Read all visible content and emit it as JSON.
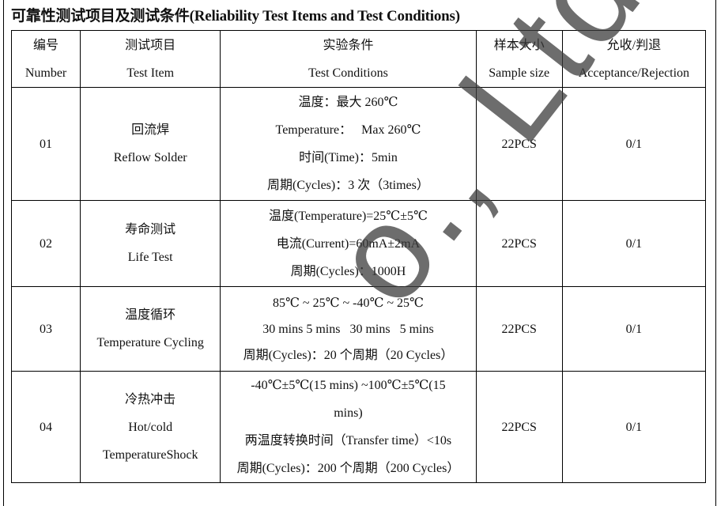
{
  "title": "可靠性测试项目及测试条件(Reliability Test Items and Test Conditions)",
  "table": {
    "headers": [
      {
        "cn": "编号",
        "en": "Number"
      },
      {
        "cn": "测试项目",
        "en": "Test Item"
      },
      {
        "cn": "实验条件",
        "en": "Test Conditions"
      },
      {
        "cn": "样本大小",
        "en": "Sample size"
      },
      {
        "cn": "允收/判退",
        "en": "Acceptance/Rejection"
      }
    ],
    "rows": [
      {
        "number": "01",
        "item_cn": "回流焊",
        "item_en": "Reflow Solder",
        "conditions": [
          "温度：最大 260℃",
          "Temperature：   Max 260℃",
          "时间(Time)：5min",
          "周期(Cycles)：3 次（3times）"
        ],
        "sample": "22PCS",
        "accept": "0/1"
      },
      {
        "number": "02",
        "item_cn": "寿命测试",
        "item_en": "Life Test",
        "conditions": [
          "温度(Temperature)=25℃±5℃",
          "电流(Current)=60mA±2mA",
          "周期(Cycles)：1000H"
        ],
        "sample": "22PCS",
        "accept": "0/1"
      },
      {
        "number": "03",
        "item_cn": "温度循环",
        "item_en": "Temperature Cycling",
        "conditions": [
          "85℃ ~ 25℃ ~ -40℃ ~ 25℃",
          "30 mins 5 mins   30 mins   5 mins",
          "周期(Cycles)：20 个周期（20 Cycles）"
        ],
        "sample": "22PCS",
        "accept": "0/1"
      },
      {
        "number": "04",
        "item_cn": "冷热冲击",
        "item_en": "Hot/cold",
        "item_en2": "TemperatureShock",
        "conditions": [
          "-40℃±5℃(15 mins) ~100℃±5℃(15",
          "mins)",
          "两温度转换时间（Transfer time）<10s",
          "周期(Cycles)：200 个周期（200 Cycles）"
        ],
        "sample": "22PCS",
        "accept": "0/1"
      }
    ]
  },
  "watermark": "o., Ltd"
}
